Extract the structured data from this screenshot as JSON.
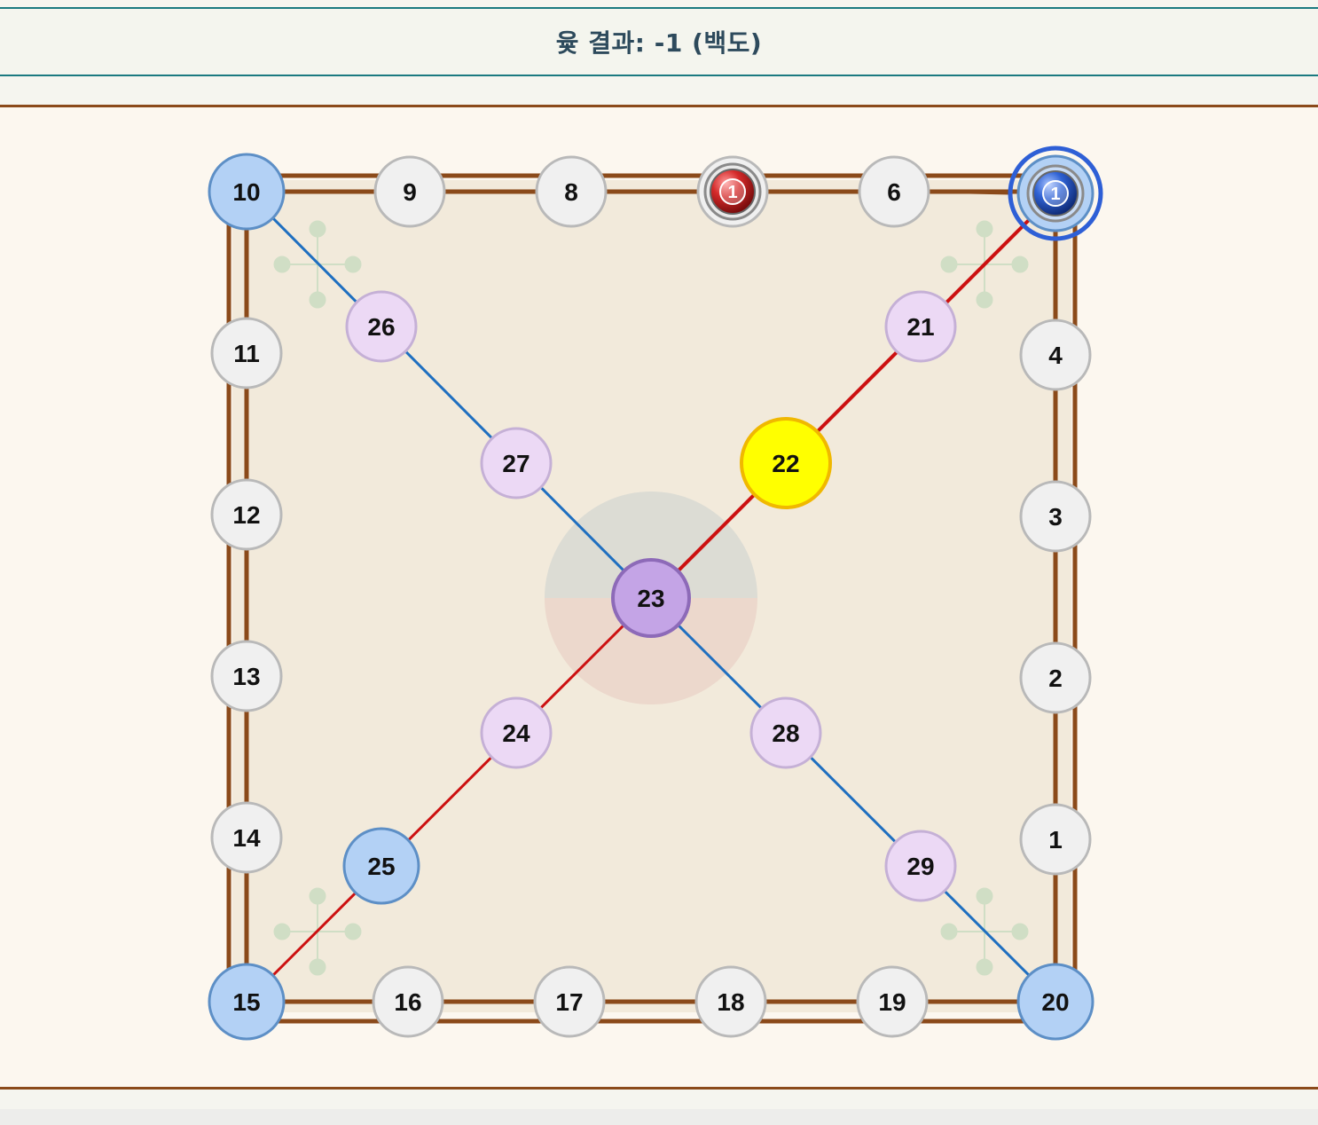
{
  "result": {
    "text": "윷 결과: -1 (백도)"
  },
  "board": {
    "nodes": [
      {
        "id": "1",
        "label": "1",
        "style": "normal"
      },
      {
        "id": "2",
        "label": "2",
        "style": "normal"
      },
      {
        "id": "3",
        "label": "3",
        "style": "normal"
      },
      {
        "id": "4",
        "label": "4",
        "style": "normal"
      },
      {
        "id": "5",
        "label": "",
        "style": "corner"
      },
      {
        "id": "6",
        "label": "6",
        "style": "normal"
      },
      {
        "id": "7",
        "label": "",
        "style": "normal"
      },
      {
        "id": "8",
        "label": "8",
        "style": "normal"
      },
      {
        "id": "9",
        "label": "9",
        "style": "normal"
      },
      {
        "id": "10",
        "label": "10",
        "style": "corner"
      },
      {
        "id": "11",
        "label": "11",
        "style": "normal"
      },
      {
        "id": "12",
        "label": "12",
        "style": "normal"
      },
      {
        "id": "13",
        "label": "13",
        "style": "normal"
      },
      {
        "id": "14",
        "label": "14",
        "style": "normal"
      },
      {
        "id": "15",
        "label": "15",
        "style": "corner"
      },
      {
        "id": "16",
        "label": "16",
        "style": "normal"
      },
      {
        "id": "17",
        "label": "17",
        "style": "normal"
      },
      {
        "id": "18",
        "label": "18",
        "style": "normal"
      },
      {
        "id": "19",
        "label": "19",
        "style": "normal"
      },
      {
        "id": "20",
        "label": "20",
        "style": "corner"
      },
      {
        "id": "21",
        "label": "21",
        "style": "diagonal"
      },
      {
        "id": "22",
        "label": "22",
        "style": "highlight"
      },
      {
        "id": "23",
        "label": "23",
        "style": "center"
      },
      {
        "id": "24",
        "label": "24",
        "style": "diagonal"
      },
      {
        "id": "25",
        "label": "25",
        "style": "corner"
      },
      {
        "id": "26",
        "label": "26",
        "style": "diagonal"
      },
      {
        "id": "27",
        "label": "27",
        "style": "diagonal"
      },
      {
        "id": "28",
        "label": "28",
        "style": "diagonal"
      },
      {
        "id": "29",
        "label": "29",
        "style": "diagonal"
      }
    ],
    "pieces": [
      {
        "team": "red",
        "label": "1",
        "node": "7",
        "color": "#cc2222",
        "selected": false
      },
      {
        "team": "blue",
        "label": "1",
        "node": "5",
        "color": "#2255cc",
        "selected": true
      }
    ],
    "colors": {
      "border": "#8b4a1a",
      "board_fill": "#f2eadb",
      "path_blue": "#1f6fc0",
      "path_red": "#cc1111",
      "node_normal": "#f0f0f0",
      "node_corner": "#b3d1f5",
      "node_diagonal": "#ecd9f5",
      "node_highlight": "#ffff00",
      "node_center": "#c4a4e6",
      "selection_ring": "#2e5fd6"
    }
  }
}
